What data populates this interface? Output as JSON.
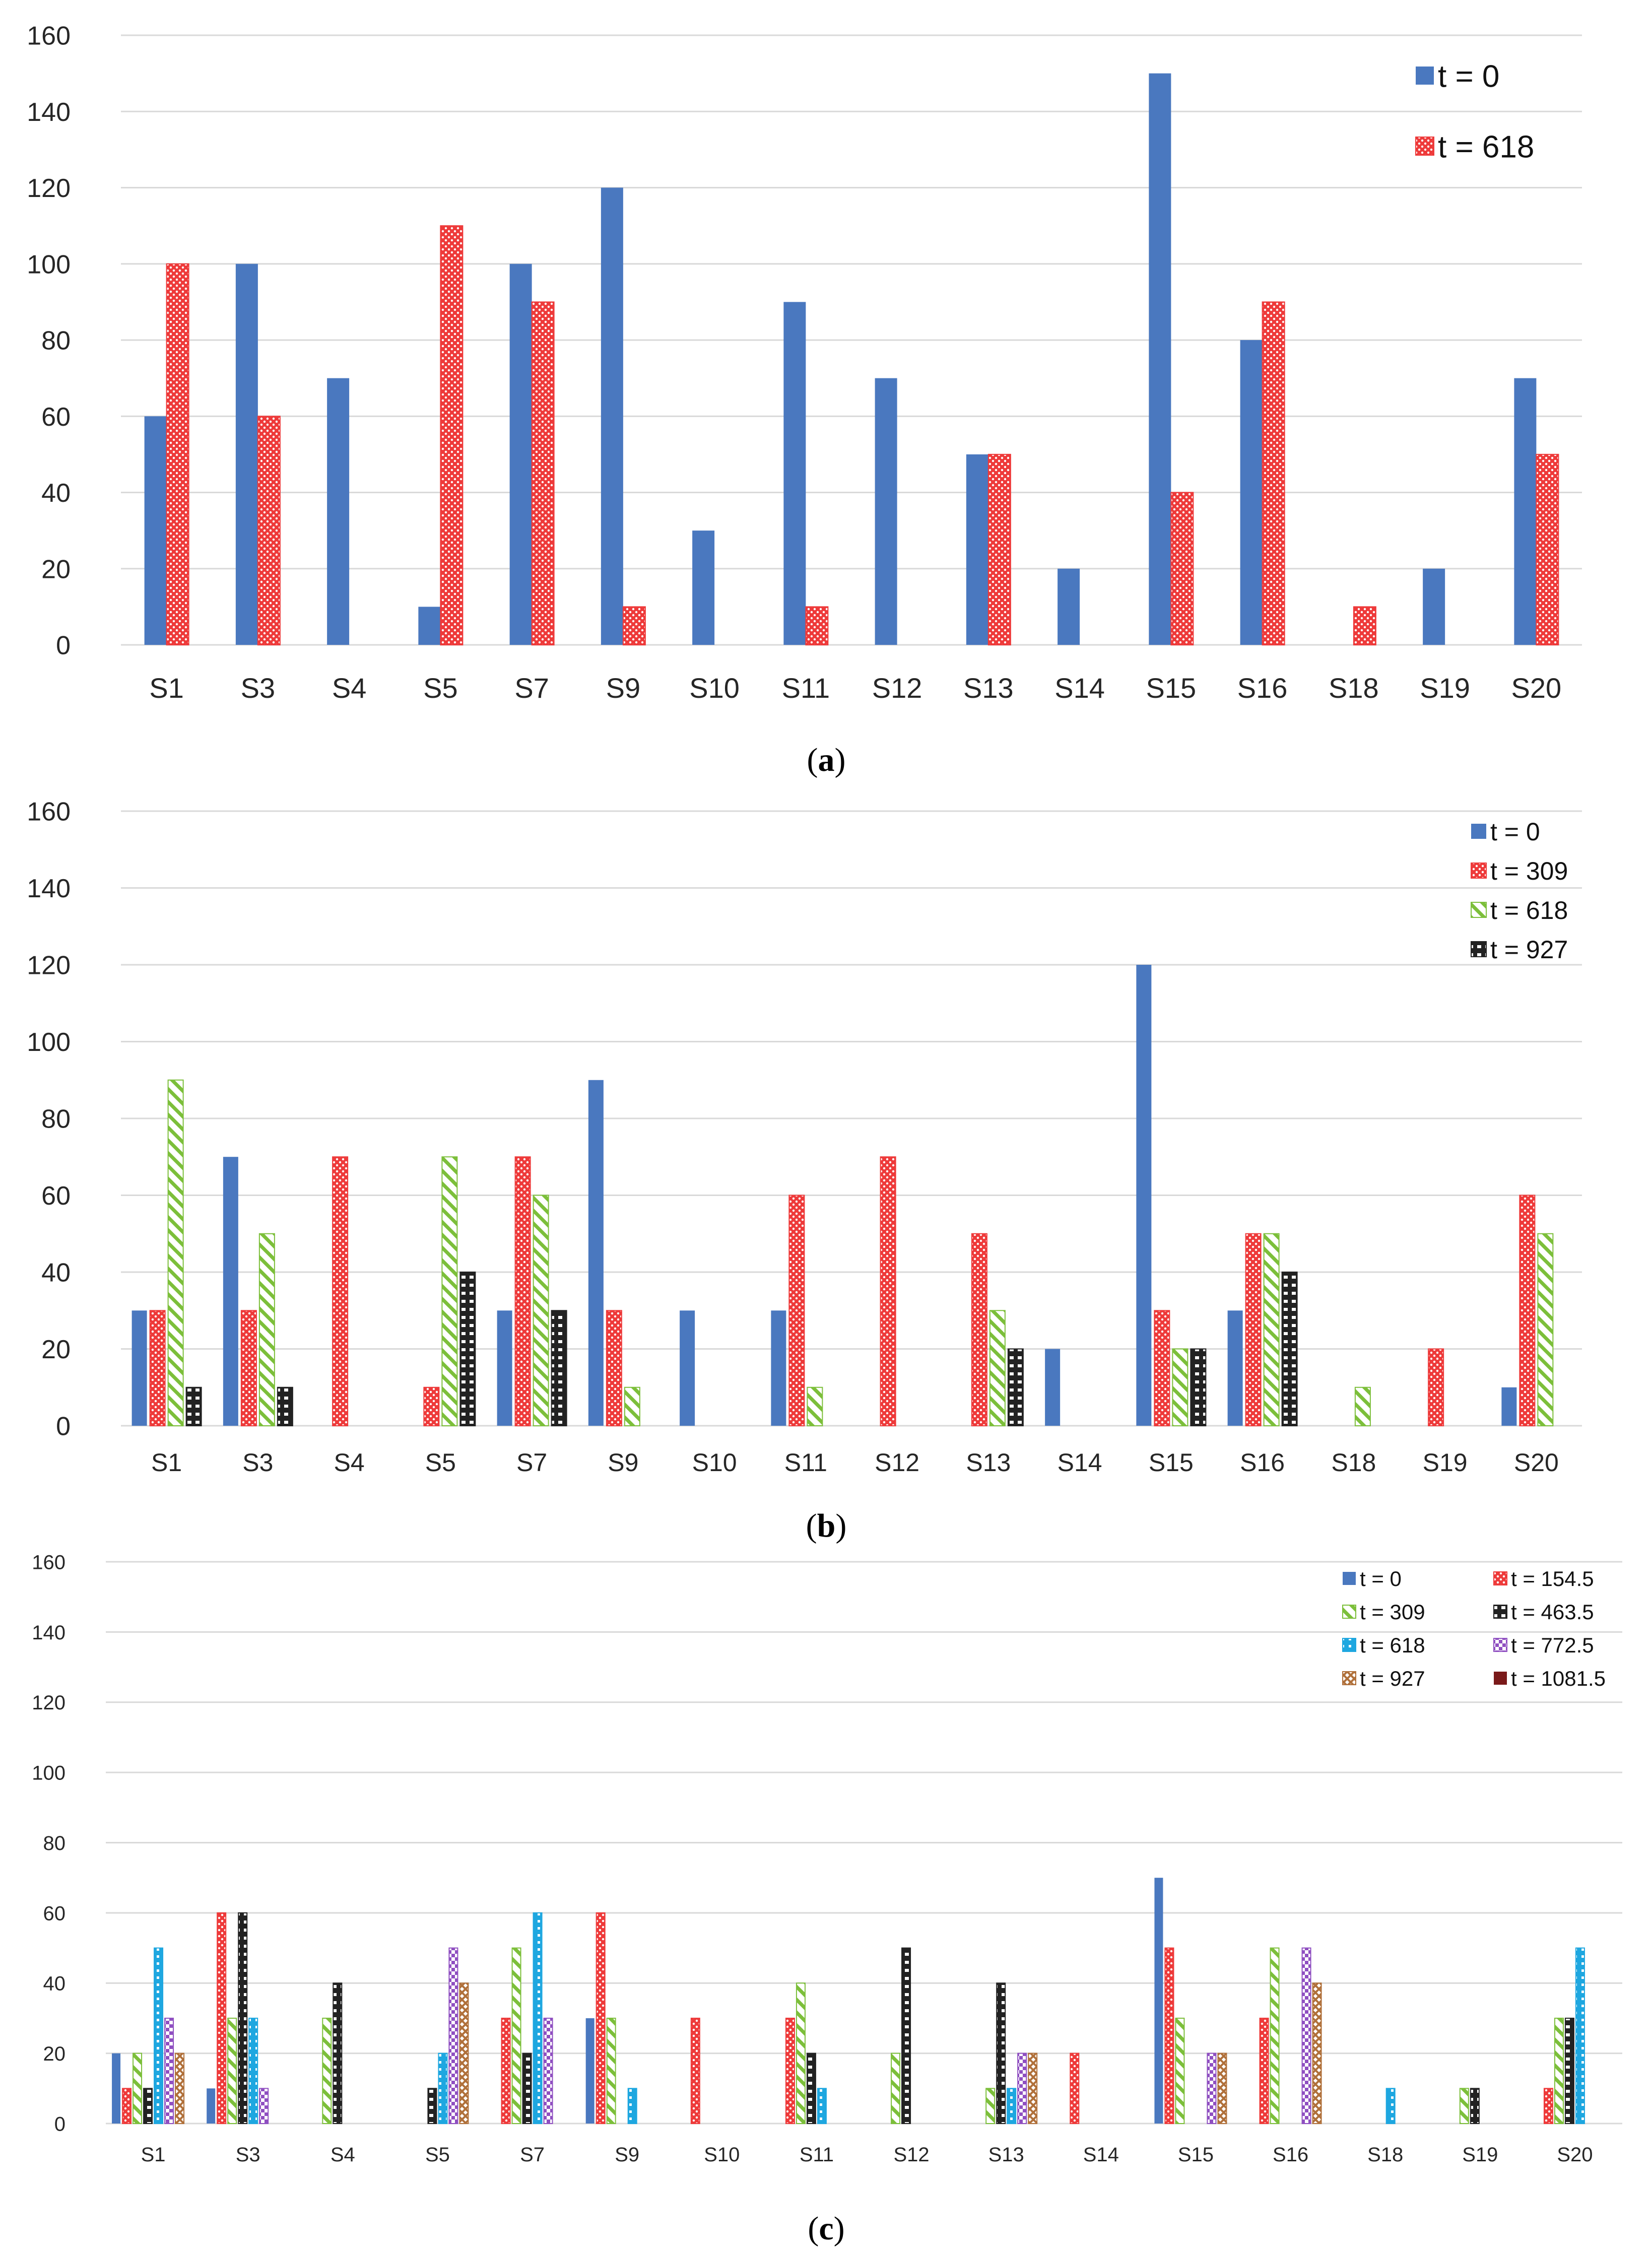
{
  "chart_data": [
    {
      "type": "bar",
      "caption": {
        "open": "(",
        "letter": "a",
        "close": ")"
      },
      "categories": [
        "S1",
        "S3",
        "S4",
        "S5",
        "S7",
        "S9",
        "S10",
        "S11",
        "S12",
        "S13",
        "S14",
        "S15",
        "S16",
        "S18",
        "S19",
        "S20"
      ],
      "ylim": [
        0,
        160
      ],
      "yticks": [
        "0",
        "20",
        "40",
        "60",
        "80",
        "100",
        "120",
        "140",
        "160"
      ],
      "grid": true,
      "legend_position": "top-right",
      "series": [
        {
          "name": "t = 0",
          "color": "#4a78bf",
          "pattern": "solid",
          "values": [
            60,
            100,
            70,
            10,
            100,
            120,
            30,
            90,
            70,
            50,
            20,
            150,
            80,
            0,
            20,
            70
          ]
        },
        {
          "name": "t = 618",
          "color": "#ee3a3a",
          "pattern": "dotted-red",
          "values": [
            100,
            60,
            0,
            110,
            90,
            10,
            0,
            10,
            0,
            50,
            0,
            40,
            90,
            10,
            0,
            50
          ]
        }
      ]
    },
    {
      "type": "bar",
      "caption": {
        "open": "(",
        "letter": "b",
        "close": ")"
      },
      "categories": [
        "S1",
        "S3",
        "S4",
        "S5",
        "S7",
        "S9",
        "S10",
        "S11",
        "S12",
        "S13",
        "S14",
        "S15",
        "S16",
        "S18",
        "S19",
        "S20"
      ],
      "ylim": [
        0,
        160
      ],
      "yticks": [
        "0",
        "20",
        "40",
        "60",
        "80",
        "100",
        "120",
        "140",
        "160"
      ],
      "grid": true,
      "legend_position": "top-right",
      "series": [
        {
          "name": "t = 0",
          "color": "#4a78bf",
          "pattern": "solid",
          "values": [
            30,
            70,
            0,
            0,
            30,
            90,
            30,
            30,
            0,
            0,
            20,
            120,
            30,
            0,
            0,
            10
          ]
        },
        {
          "name": "t = 309",
          "color": "#ee3a3a",
          "pattern": "dotted-red",
          "values": [
            30,
            30,
            70,
            10,
            70,
            30,
            0,
            60,
            70,
            50,
            0,
            30,
            50,
            0,
            20,
            60
          ]
        },
        {
          "name": "t = 618",
          "color": "#7cbf3a",
          "pattern": "diagonal-green",
          "values": [
            90,
            50,
            0,
            70,
            60,
            10,
            0,
            10,
            0,
            30,
            0,
            20,
            50,
            10,
            0,
            50
          ]
        },
        {
          "name": "t = 927",
          "color": "#222222",
          "pattern": "ladder-black",
          "values": [
            10,
            10,
            0,
            40,
            30,
            0,
            0,
            0,
            0,
            20,
            0,
            20,
            40,
            0,
            0,
            0
          ]
        }
      ]
    },
    {
      "type": "bar",
      "caption": {
        "open": "(",
        "letter": "c",
        "close": ")"
      },
      "categories": [
        "S1",
        "S3",
        "S4",
        "S5",
        "S7",
        "S9",
        "S10",
        "S11",
        "S12",
        "S13",
        "S14",
        "S15",
        "S16",
        "S18",
        "S19",
        "S20"
      ],
      "ylim": [
        0,
        160
      ],
      "yticks": [
        "0",
        "20",
        "40",
        "60",
        "80",
        "100",
        "120",
        "140",
        "160"
      ],
      "grid": true,
      "legend_position": "top-right",
      "series": [
        {
          "name": "t = 0",
          "color": "#4a78bf",
          "pattern": "solid",
          "values": [
            20,
            10,
            0,
            0,
            0,
            30,
            0,
            0,
            0,
            0,
            0,
            70,
            0,
            0,
            0,
            0
          ]
        },
        {
          "name": "t = 154.5",
          "color": "#ee3a3a",
          "pattern": "dotted-red",
          "values": [
            10,
            60,
            0,
            0,
            30,
            60,
            30,
            30,
            0,
            0,
            20,
            50,
            30,
            0,
            0,
            10
          ]
        },
        {
          "name": "t = 309",
          "color": "#7cbf3a",
          "pattern": "diagonal-green",
          "values": [
            20,
            30,
            30,
            0,
            50,
            30,
            0,
            40,
            20,
            10,
            0,
            30,
            50,
            0,
            10,
            30
          ]
        },
        {
          "name": "t = 463.5",
          "color": "#222222",
          "pattern": "ladder-black",
          "values": [
            10,
            60,
            40,
            10,
            20,
            0,
            0,
            20,
            50,
            40,
            0,
            0,
            0,
            0,
            10,
            30
          ]
        },
        {
          "name": "t = 618",
          "color": "#1ea7e0",
          "pattern": "dotted-cyan",
          "values": [
            50,
            30,
            0,
            20,
            60,
            10,
            0,
            10,
            0,
            10,
            0,
            0,
            0,
            10,
            0,
            50
          ]
        },
        {
          "name": "t = 772.5",
          "color": "#8f4fc1",
          "pattern": "check-purple",
          "values": [
            30,
            10,
            0,
            50,
            30,
            0,
            0,
            0,
            0,
            20,
            0,
            20,
            50,
            0,
            0,
            0
          ]
        },
        {
          "name": "t = 927",
          "color": "#b0703a",
          "pattern": "crosshatch-brown",
          "values": [
            20,
            0,
            0,
            40,
            0,
            0,
            0,
            0,
            0,
            20,
            0,
            20,
            40,
            0,
            0,
            0
          ]
        },
        {
          "name": "t = 1081.5",
          "color": "#7a1a1a",
          "pattern": "solid",
          "values": [
            0,
            0,
            0,
            0,
            0,
            0,
            0,
            0,
            0,
            0,
            0,
            0,
            0,
            0,
            0,
            0
          ]
        }
      ]
    }
  ]
}
